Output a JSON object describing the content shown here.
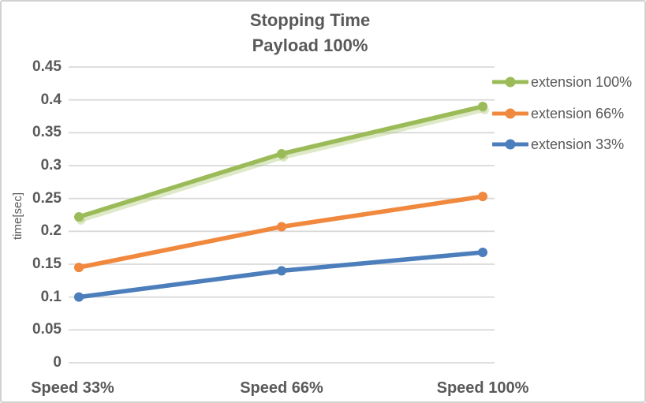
{
  "window": {
    "background": "#ffffff",
    "border_color": "#d2d2d2"
  },
  "chart_data": {
    "type": "line",
    "title": "Stopping Time",
    "subtitle": "Payload 100%",
    "categories": [
      "Speed 33%",
      "Speed 66%",
      "Speed 100%"
    ],
    "series": [
      {
        "name": "extension 100%",
        "color": "#9bbb59",
        "values": [
          0.222,
          0.318,
          0.39
        ],
        "shadow": true
      },
      {
        "name": "extension 66%",
        "color": "#f0883e",
        "values": [
          0.145,
          0.207,
          0.253
        ],
        "shadow": false
      },
      {
        "name": "extension 33%",
        "color": "#4c7ebc",
        "values": [
          0.1,
          0.14,
          0.168
        ],
        "shadow": false
      }
    ],
    "xlabel": "",
    "ylabel": "time[sec]",
    "ylim": [
      0,
      0.45
    ],
    "ytick_step": 0.05,
    "yticks": [
      "0",
      "0.05",
      "0.1",
      "0.15",
      "0.2",
      "0.25",
      "0.3",
      "0.35",
      "0.4",
      "0.45"
    ],
    "grid": "horizontal",
    "grid_color": "#d9d9d9",
    "text_color": "#595959",
    "legend_position": "right"
  }
}
